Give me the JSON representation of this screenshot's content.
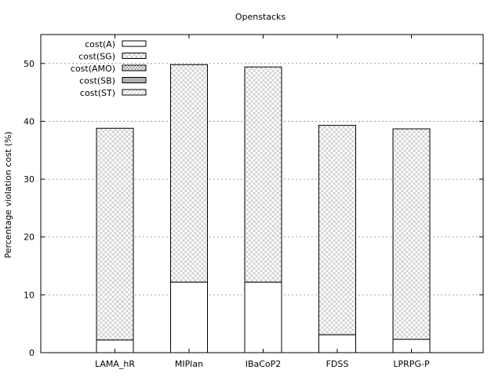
{
  "chart_data": {
    "type": "bar",
    "stacked": true,
    "title": "Openstacks",
    "xlabel": "",
    "ylabel": "Percentage violation cost (%)",
    "ylim": [
      0,
      55
    ],
    "yticks": [
      0,
      10,
      20,
      30,
      40,
      50
    ],
    "grid": true,
    "legend_position": "top-left",
    "categories": [
      "LAMA_hR",
      "MIPlan",
      "IBaCoP2",
      "FDSS",
      "LPRPG-P"
    ],
    "series": [
      {
        "name": "cost(A)",
        "pattern": "empty",
        "color": "#ffffff",
        "values": [
          2.2,
          12.2,
          12.2,
          3.1,
          2.3
        ]
      },
      {
        "name": "cost(SG)",
        "pattern": "crosshatch",
        "color": "#d8d8d8",
        "values": [
          36.6,
          37.6,
          37.2,
          36.2,
          36.4
        ]
      },
      {
        "name": "cost(AMO)",
        "pattern": "crosshatch-dense",
        "color": "#bbbbbb",
        "values": [
          0,
          0,
          0,
          0,
          0
        ]
      },
      {
        "name": "cost(SB)",
        "pattern": "solid",
        "color": "#b0b0b0",
        "values": [
          0,
          0,
          0,
          0,
          0
        ]
      },
      {
        "name": "cost(ST)",
        "pattern": "diagonal",
        "color": "#cccccc",
        "values": [
          0,
          0,
          0,
          0,
          0
        ]
      }
    ]
  }
}
